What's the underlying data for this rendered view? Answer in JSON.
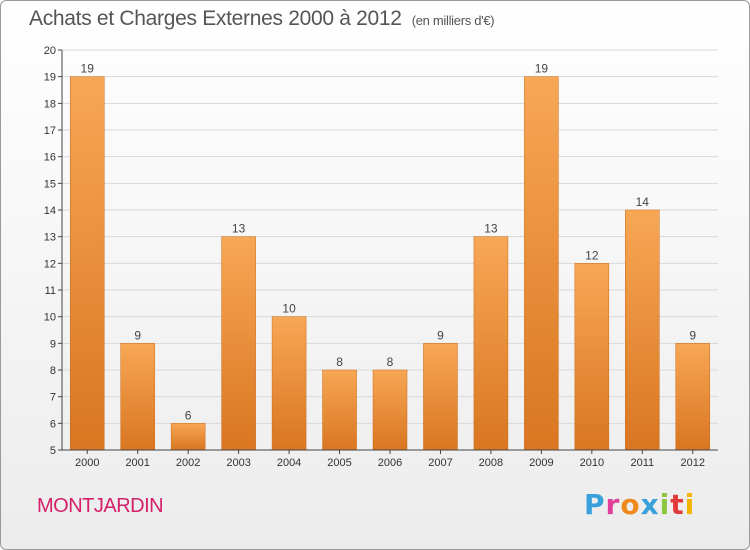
{
  "header": {
    "title": "Achats et Charges Externes 2000 à 2012",
    "unit": "(en milliers d'€)"
  },
  "footer": {
    "commune": "MONTJARDIN",
    "logo_text": "Proxiti",
    "logo_colors": [
      "#3aa0dc",
      "#e0409a",
      "#f08a1c",
      "#3aa0dc",
      "#8cc63f",
      "#e23a3a",
      "#f5b300"
    ]
  },
  "colors": {
    "bar_light": "#f7a755",
    "bar_dark": "#d97621",
    "bar_edge": "#c96a18",
    "grid": "#d9d9d9",
    "axis": "#444444"
  },
  "chart_data": {
    "type": "bar",
    "categories": [
      "2000",
      "2001",
      "2002",
      "2003",
      "2004",
      "2005",
      "2006",
      "2007",
      "2008",
      "2009",
      "2010",
      "2011",
      "2012"
    ],
    "values": [
      19,
      9,
      6,
      13,
      10,
      8,
      8,
      9,
      13,
      19,
      12,
      14,
      9
    ],
    "title": "Achats et Charges Externes 2000 à 2012",
    "ylim": [
      5,
      20
    ],
    "yticks": [
      5,
      6,
      7,
      8,
      9,
      10,
      11,
      12,
      13,
      14,
      15,
      16,
      17,
      18,
      19,
      20
    ],
    "grid": true
  }
}
